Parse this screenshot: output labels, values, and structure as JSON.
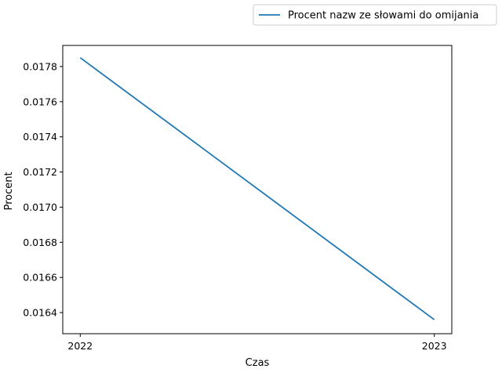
{
  "chart_data": {
    "type": "line",
    "x": [
      2022,
      2023
    ],
    "x_tick_labels": [
      "2022",
      "2023"
    ],
    "xlabel": "Czas",
    "ylabel": "Procent",
    "ylim": [
      0.01628,
      0.01792
    ],
    "y_ticks": [
      0.0164,
      0.0166,
      0.0168,
      0.017,
      0.0172,
      0.0174,
      0.0176,
      0.0178
    ],
    "y_tick_labels": [
      "0.0164",
      "0.0166",
      "0.0168",
      "0.0170",
      "0.0172",
      "0.0174",
      "0.0176",
      "0.0178"
    ],
    "series": [
      {
        "name": "Procent nazw ze słowami do omijania",
        "values": [
          0.01785,
          0.01636
        ],
        "color": "#1f77b4"
      }
    ],
    "grid": false,
    "legend_position": "upper-right-outside"
  }
}
